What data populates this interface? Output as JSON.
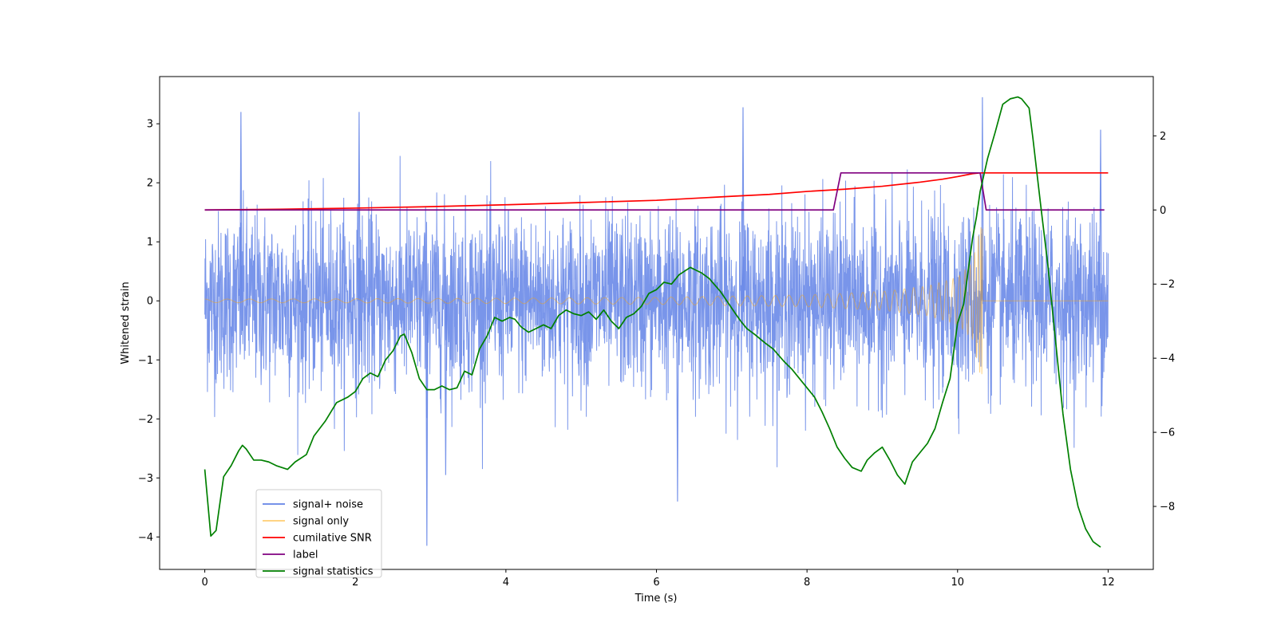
{
  "chart_data": {
    "type": "line",
    "title": "",
    "xlabel": "Time (s)",
    "ylabel": "Whitened strain",
    "ylabel_right": "",
    "xlim": [
      -0.6,
      12.6
    ],
    "ylim": [
      -4.55,
      3.8
    ],
    "ylim_right": [
      -9.7,
      3.6
    ],
    "x_ticks": [
      0,
      2,
      4,
      6,
      8,
      10,
      12
    ],
    "y_ticks": [
      -4,
      -3,
      -2,
      -1,
      0,
      1,
      2,
      3
    ],
    "y_ticks_right": [
      -8,
      -6,
      -4,
      -2,
      0,
      2
    ],
    "grid": false,
    "legend_position": "lower-left",
    "series": [
      {
        "name": "signal+ noise",
        "color": "#6283e6",
        "axis": "left",
        "style": "noise band",
        "band_range": [
          -1.5,
          1.5
        ],
        "spike_peaks": [
          {
            "x": 0.48,
            "y": 3.2
          },
          {
            "x": 2.05,
            "y": 3.2
          },
          {
            "x": 2.95,
            "y": -4.15
          },
          {
            "x": 3.2,
            "y": -2.95
          },
          {
            "x": 6.28,
            "y": -3.4
          },
          {
            "x": 7.15,
            "y": 3.28
          },
          {
            "x": 10.33,
            "y": 3.45
          },
          {
            "x": 11.9,
            "y": 2.9
          }
        ]
      },
      {
        "name": "signal only",
        "color": "#ffa500",
        "axis": "left",
        "style": "chirp",
        "amplitude_envelope": [
          {
            "x": 0,
            "y": 0.03
          },
          {
            "x": 2,
            "y": 0.035
          },
          {
            "x": 4,
            "y": 0.045
          },
          {
            "x": 6,
            "y": 0.06
          },
          {
            "x": 8,
            "y": 0.1
          },
          {
            "x": 9,
            "y": 0.16
          },
          {
            "x": 9.6,
            "y": 0.25
          },
          {
            "x": 10,
            "y": 0.4
          },
          {
            "x": 10.2,
            "y": 0.65
          },
          {
            "x": 10.3,
            "y": 1.25
          }
        ],
        "merger_time": 10.33,
        "post_merger_value": 0
      },
      {
        "name": "cumilative SNR",
        "color": "#ff0000",
        "axis": "right",
        "points": [
          [
            0,
            0.0
          ],
          [
            1,
            0.02
          ],
          [
            2,
            0.05
          ],
          [
            3,
            0.09
          ],
          [
            4,
            0.14
          ],
          [
            5,
            0.2
          ],
          [
            6,
            0.26
          ],
          [
            7,
            0.37
          ],
          [
            7.5,
            0.42
          ],
          [
            8,
            0.5
          ],
          [
            8.5,
            0.56
          ],
          [
            9,
            0.64
          ],
          [
            9.5,
            0.75
          ],
          [
            9.8,
            0.83
          ],
          [
            10,
            0.9
          ],
          [
            10.2,
            0.98
          ],
          [
            10.3,
            1.0
          ],
          [
            12,
            1.0
          ]
        ]
      },
      {
        "name": "label",
        "color": "#800080",
        "axis": "right",
        "points": [
          [
            0,
            0
          ],
          [
            8.35,
            0
          ],
          [
            8.45,
            1
          ],
          [
            10.3,
            1
          ],
          [
            10.38,
            0
          ],
          [
            11.95,
            0
          ]
        ]
      },
      {
        "name": "signal statistics",
        "color": "#008000",
        "axis": "right",
        "points": [
          [
            0.0,
            -7.0
          ],
          [
            0.08,
            -8.8
          ],
          [
            0.15,
            -8.65
          ],
          [
            0.25,
            -7.2
          ],
          [
            0.35,
            -6.9
          ],
          [
            0.45,
            -6.5
          ],
          [
            0.5,
            -6.35
          ],
          [
            0.55,
            -6.45
          ],
          [
            0.65,
            -6.75
          ],
          [
            0.75,
            -6.75
          ],
          [
            0.85,
            -6.8
          ],
          [
            0.95,
            -6.9
          ],
          [
            1.1,
            -7.0
          ],
          [
            1.2,
            -6.8
          ],
          [
            1.35,
            -6.6
          ],
          [
            1.45,
            -6.1
          ],
          [
            1.6,
            -5.7
          ],
          [
            1.75,
            -5.2
          ],
          [
            1.9,
            -5.05
          ],
          [
            2.0,
            -4.9
          ],
          [
            2.1,
            -4.55
          ],
          [
            2.2,
            -4.4
          ],
          [
            2.3,
            -4.5
          ],
          [
            2.4,
            -4.05
          ],
          [
            2.5,
            -3.8
          ],
          [
            2.6,
            -3.4
          ],
          [
            2.65,
            -3.35
          ],
          [
            2.75,
            -3.85
          ],
          [
            2.85,
            -4.55
          ],
          [
            2.95,
            -4.85
          ],
          [
            3.05,
            -4.85
          ],
          [
            3.15,
            -4.75
          ],
          [
            3.25,
            -4.85
          ],
          [
            3.35,
            -4.8
          ],
          [
            3.45,
            -4.35
          ],
          [
            3.55,
            -4.45
          ],
          [
            3.65,
            -3.75
          ],
          [
            3.75,
            -3.4
          ],
          [
            3.85,
            -2.9
          ],
          [
            3.95,
            -3.0
          ],
          [
            4.05,
            -2.9
          ],
          [
            4.12,
            -2.95
          ],
          [
            4.2,
            -3.15
          ],
          [
            4.3,
            -3.3
          ],
          [
            4.4,
            -3.2
          ],
          [
            4.5,
            -3.1
          ],
          [
            4.6,
            -3.2
          ],
          [
            4.7,
            -2.85
          ],
          [
            4.8,
            -2.7
          ],
          [
            4.9,
            -2.8
          ],
          [
            5.0,
            -2.85
          ],
          [
            5.1,
            -2.75
          ],
          [
            5.2,
            -2.95
          ],
          [
            5.3,
            -2.7
          ],
          [
            5.4,
            -3.0
          ],
          [
            5.5,
            -3.2
          ],
          [
            5.6,
            -2.9
          ],
          [
            5.7,
            -2.8
          ],
          [
            5.8,
            -2.6
          ],
          [
            5.9,
            -2.25
          ],
          [
            6.0,
            -2.15
          ],
          [
            6.1,
            -1.95
          ],
          [
            6.2,
            -2.0
          ],
          [
            6.3,
            -1.75
          ],
          [
            6.45,
            -1.55
          ],
          [
            6.5,
            -1.6
          ],
          [
            6.6,
            -1.7
          ],
          [
            6.7,
            -1.85
          ],
          [
            6.85,
            -2.2
          ],
          [
            6.95,
            -2.5
          ],
          [
            7.05,
            -2.8
          ],
          [
            7.12,
            -3.0
          ],
          [
            7.2,
            -3.2
          ],
          [
            7.3,
            -3.35
          ],
          [
            7.45,
            -3.6
          ],
          [
            7.55,
            -3.75
          ],
          [
            7.7,
            -4.1
          ],
          [
            7.8,
            -4.3
          ],
          [
            7.9,
            -4.55
          ],
          [
            8.0,
            -4.8
          ],
          [
            8.1,
            -5.05
          ],
          [
            8.2,
            -5.45
          ],
          [
            8.3,
            -5.9
          ],
          [
            8.4,
            -6.4
          ],
          [
            8.5,
            -6.7
          ],
          [
            8.6,
            -6.95
          ],
          [
            8.72,
            -7.05
          ],
          [
            8.8,
            -6.75
          ],
          [
            8.9,
            -6.55
          ],
          [
            9.0,
            -6.4
          ],
          [
            9.1,
            -6.75
          ],
          [
            9.2,
            -7.15
          ],
          [
            9.3,
            -7.4
          ],
          [
            9.4,
            -6.8
          ],
          [
            9.5,
            -6.55
          ],
          [
            9.6,
            -6.3
          ],
          [
            9.7,
            -5.9
          ],
          [
            9.8,
            -5.2
          ],
          [
            9.9,
            -4.55
          ],
          [
            10.0,
            -3.05
          ],
          [
            10.08,
            -2.55
          ],
          [
            10.15,
            -1.5
          ],
          [
            10.2,
            -0.75
          ],
          [
            10.25,
            -0.2
          ],
          [
            10.3,
            0.5
          ],
          [
            10.4,
            1.4
          ],
          [
            10.5,
            2.1
          ],
          [
            10.6,
            2.85
          ],
          [
            10.7,
            3.0
          ],
          [
            10.8,
            3.05
          ],
          [
            10.85,
            3.0
          ],
          [
            10.95,
            2.75
          ],
          [
            11.0,
            1.95
          ],
          [
            11.1,
            0.2
          ],
          [
            11.2,
            -1.5
          ],
          [
            11.3,
            -3.5
          ],
          [
            11.4,
            -5.5
          ],
          [
            11.5,
            -7.0
          ],
          [
            11.6,
            -8.0
          ],
          [
            11.7,
            -8.6
          ],
          [
            11.8,
            -8.95
          ],
          [
            11.9,
            -9.1
          ]
        ]
      }
    ]
  }
}
